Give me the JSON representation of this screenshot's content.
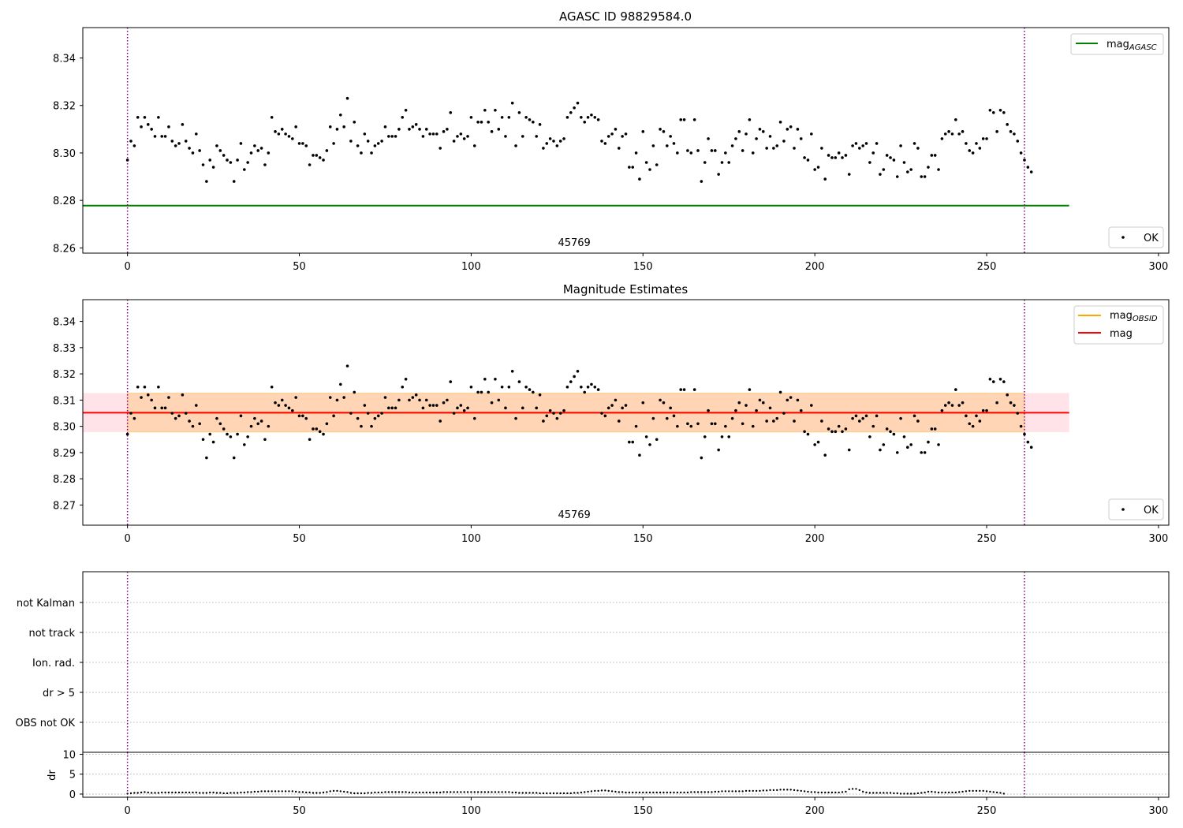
{
  "chart_data": [
    {
      "id": "agasc",
      "type": "scatter",
      "title": "AGASC ID 98829584.0",
      "xlim": [
        -13,
        303
      ],
      "ylim": [
        8.2578,
        8.3528
      ],
      "xticks": [
        0,
        50,
        100,
        150,
        200,
        250,
        300
      ],
      "yticks": [
        8.26,
        8.28,
        8.3,
        8.32,
        8.34
      ],
      "ytick_labels": [
        "8.26",
        "8.28",
        "8.30",
        "8.32",
        "8.34"
      ],
      "obsid_label": "45769",
      "obsid_label_x": 130,
      "vlines": [
        0,
        261
      ],
      "hline": {
        "y": 8.2778,
        "x": [
          -13,
          274
        ],
        "color": "#008000"
      },
      "legend_top": {
        "placement": "top-right",
        "label": "mag",
        "sub": "AGASC",
        "color": "#008000"
      },
      "legend_bottom": {
        "placement": "bottom-right",
        "label": "OK"
      },
      "series": {
        "name": "OK",
        "x_start": 0,
        "x_step": 1
      }
    },
    {
      "id": "estimates",
      "type": "scatter",
      "title": "Magnitude Estimates",
      "xlim": [
        -13,
        303
      ],
      "ylim": [
        8.2623,
        8.3483
      ],
      "xticks": [
        0,
        50,
        100,
        150,
        200,
        250,
        300
      ],
      "yticks": [
        8.27,
        8.28,
        8.29,
        8.3,
        8.31,
        8.32,
        8.33,
        8.34
      ],
      "ytick_labels": [
        "8.27",
        "8.28",
        "8.29",
        "8.30",
        "8.31",
        "8.32",
        "8.33",
        "8.34"
      ],
      "obsid_label": "45769",
      "obsid_label_x": 130,
      "vlines": [
        0,
        261
      ],
      "band_pink": {
        "y": [
          8.2978,
          8.3127
        ],
        "x": [
          -13,
          274
        ],
        "color": "#ffc0cb"
      },
      "band_orange": {
        "y": [
          8.2978,
          8.3127
        ],
        "x": [
          0,
          261
        ],
        "color": "#ffa500"
      },
      "mean_line": {
        "y": 8.3052,
        "x": [
          -13,
          274
        ],
        "color": "#ff0000"
      },
      "obsid_line": {
        "y": 8.3052,
        "x": [
          0,
          261
        ],
        "color": "#ffa500"
      },
      "legend_top": [
        {
          "label": "mag",
          "sub": "OBSID",
          "color": "#ffa500"
        },
        {
          "label": "mag",
          "sub": "",
          "color": "#ff0000"
        }
      ],
      "legend_bottom": {
        "placement": "bottom-right",
        "label": "OK"
      }
    },
    {
      "id": "flags",
      "type": "scatter",
      "categories": [
        "not Kalman",
        "not track",
        "Ion. rad.",
        "dr > 5",
        "OBS not OK"
      ],
      "vlines": [
        0,
        261
      ],
      "xlim": [
        -13,
        303
      ]
    },
    {
      "id": "dr",
      "type": "scatter",
      "ylabel": "dr",
      "xlim": [
        -13,
        303
      ],
      "ylim": [
        -0.8,
        10.5
      ],
      "yticks": [
        0,
        5,
        10
      ],
      "ytick_labels": [
        "0",
        "5",
        "10"
      ],
      "xticks": [
        0,
        50,
        100,
        150,
        200,
        250,
        300
      ],
      "vlines": [
        0,
        261
      ]
    }
  ],
  "mag_values": [
    8.297,
    8.305,
    8.303,
    8.315,
    8.311,
    8.315,
    8.312,
    8.31,
    8.307,
    8.315,
    8.307,
    8.307,
    8.311,
    8.305,
    8.303,
    8.304,
    8.312,
    8.305,
    8.302,
    8.3,
    8.308,
    8.301,
    8.295,
    8.288,
    8.297,
    8.294,
    8.303,
    8.301,
    8.299,
    8.297,
    8.296,
    8.288,
    8.297,
    8.304,
    8.293,
    8.296,
    8.3,
    8.303,
    8.301,
    8.302,
    8.295,
    8.3,
    8.315,
    8.309,
    8.308,
    8.31,
    8.308,
    8.307,
    8.306,
    8.311,
    8.304,
    8.304,
    8.303,
    8.295,
    8.299,
    8.299,
    8.298,
    8.297,
    8.301,
    8.311,
    8.304,
    8.31,
    8.316,
    8.311,
    8.323,
    8.305,
    8.313,
    8.303,
    8.3,
    8.308,
    8.305,
    8.3,
    8.303,
    8.304,
    8.305,
    8.311,
    8.307,
    8.307,
    8.307,
    8.31,
    8.315,
    8.318,
    8.31,
    8.311,
    8.312,
    8.31,
    8.307,
    8.31,
    8.308,
    8.308,
    8.308,
    8.302,
    8.309,
    8.31,
    8.317,
    8.305,
    8.307,
    8.308,
    8.306,
    8.307,
    8.315,
    8.303,
    8.313,
    8.313,
    8.318,
    8.313,
    8.309,
    8.318,
    8.31,
    8.315,
    8.307,
    8.315,
    8.321,
    8.303,
    8.317,
    8.307,
    8.315,
    8.314,
    8.313,
    8.307,
    8.312,
    8.302,
    8.304,
    8.306,
    8.305,
    8.303,
    8.305,
    8.306,
    8.315,
    8.317,
    8.319,
    8.321,
    8.315,
    8.313,
    8.315,
    8.316,
    8.315,
    8.314,
    8.305,
    8.304,
    8.307,
    8.308,
    8.31,
    8.302,
    8.307,
    8.308,
    8.294,
    8.294,
    8.3,
    8.289,
    8.309,
    8.296,
    8.293,
    8.303,
    8.295,
    8.31,
    8.309,
    8.303,
    8.307,
    8.304,
    8.3,
    8.314,
    8.314,
    8.301,
    8.3,
    8.314,
    8.301,
    8.288,
    8.296,
    8.306,
    8.301,
    8.301,
    8.291,
    8.296,
    8.3,
    8.296,
    8.303,
    8.306,
    8.309,
    8.301,
    8.308,
    8.314,
    8.3,
    8.306,
    8.31,
    8.309,
    8.302,
    8.307,
    8.302,
    8.303,
    8.313,
    8.305,
    8.31,
    8.311,
    8.302,
    8.31,
    8.306,
    8.298,
    8.297,
    8.308,
    8.293,
    8.294,
    8.302,
    8.289,
    8.299,
    8.298,
    8.298,
    8.3,
    8.298,
    8.299,
    8.291,
    8.303,
    8.304,
    8.302,
    8.303,
    8.304,
    8.296,
    8.3,
    8.304,
    8.291,
    8.293,
    8.299,
    8.298,
    8.297,
    8.29,
    8.303,
    8.296,
    8.292,
    8.293,
    8.304,
    8.302,
    8.29,
    8.29,
    8.294,
    8.299,
    8.299,
    8.293,
    8.306,
    8.308,
    8.309,
    8.308,
    8.314,
    8.308,
    8.309,
    8.304,
    8.301,
    8.3,
    8.304,
    8.302,
    8.306,
    8.306,
    8.318,
    8.317,
    8.309,
    8.318,
    8.317,
    8.312,
    8.309,
    8.308,
    8.305,
    8.3,
    8.297,
    8.294,
    8.292
  ],
  "dr_values": [
    0.1,
    0.2,
    0.3,
    0.3,
    0.4,
    0.5,
    0.4,
    0.3,
    0.3,
    0.3,
    0.4,
    0.4,
    0.4,
    0.4,
    0.4,
    0.4,
    0.4,
    0.4,
    0.4,
    0.4,
    0.4,
    0.3,
    0.3,
    0.3,
    0.4,
    0.4,
    0.3,
    0.3,
    0.2,
    0.2,
    0.3,
    0.3,
    0.3,
    0.4,
    0.4,
    0.5,
    0.5,
    0.6,
    0.6,
    0.7,
    0.7,
    0.7,
    0.7,
    0.7,
    0.7,
    0.7,
    0.7,
    0.7,
    0.7,
    0.6,
    0.5,
    0.5,
    0.4,
    0.4,
    0.3,
    0.3,
    0.3,
    0.4,
    0.5,
    0.7,
    0.8,
    0.8,
    0.7,
    0.6,
    0.5,
    0.3,
    0.2,
    0.2,
    0.2,
    0.2,
    0.3,
    0.3,
    0.4,
    0.4,
    0.4,
    0.5,
    0.5,
    0.5,
    0.5,
    0.5,
    0.5,
    0.5,
    0.4,
    0.4,
    0.4,
    0.4,
    0.4,
    0.4,
    0.4,
    0.4,
    0.4,
    0.4,
    0.5,
    0.5,
    0.5,
    0.5,
    0.5,
    0.5,
    0.5,
    0.5,
    0.5,
    0.5,
    0.5,
    0.5,
    0.5,
    0.5,
    0.5,
    0.5,
    0.5,
    0.5,
    0.5,
    0.5,
    0.4,
    0.4,
    0.3,
    0.3,
    0.3,
    0.3,
    0.3,
    0.3,
    0.2,
    0.2,
    0.2,
    0.2,
    0.2,
    0.2,
    0.2,
    0.2,
    0.2,
    0.2,
    0.3,
    0.3,
    0.4,
    0.5,
    0.6,
    0.7,
    0.8,
    0.8,
    0.9,
    0.9,
    0.8,
    0.7,
    0.6,
    0.5,
    0.5,
    0.4,
    0.4,
    0.4,
    0.4,
    0.4,
    0.4,
    0.4,
    0.4,
    0.4,
    0.4,
    0.4,
    0.4,
    0.4,
    0.4,
    0.4,
    0.4,
    0.4,
    0.4,
    0.4,
    0.5,
    0.5,
    0.5,
    0.5,
    0.5,
    0.5,
    0.5,
    0.6,
    0.6,
    0.7,
    0.7,
    0.7,
    0.7,
    0.7,
    0.7,
    0.7,
    0.8,
    0.8,
    0.8,
    0.8,
    0.8,
    0.9,
    0.9,
    1.0,
    1.0,
    1.0,
    1.1,
    1.1,
    1.1,
    1.1,
    1.0,
    0.9,
    0.8,
    0.7,
    0.6,
    0.5,
    0.5,
    0.4,
    0.4,
    0.4,
    0.4,
    0.4,
    0.4,
    0.4,
    0.5,
    0.6,
    1.2,
    1.3,
    1.3,
    1.0,
    0.6,
    0.4,
    0.3,
    0.3,
    0.3,
    0.3,
    0.3,
    0.3,
    0.3,
    0.2,
    0.2,
    0.1,
    0.1,
    0.1,
    0.1,
    0.1,
    0.2,
    0.3,
    0.4,
    0.6,
    0.6,
    0.5,
    0.4,
    0.4,
    0.4,
    0.4,
    0.4,
    0.4,
    0.5,
    0.6,
    0.7,
    0.8,
    0.8,
    0.8,
    0.8,
    0.8,
    0.7,
    0.6,
    0.5,
    0.4,
    0.3,
    0.1
  ]
}
